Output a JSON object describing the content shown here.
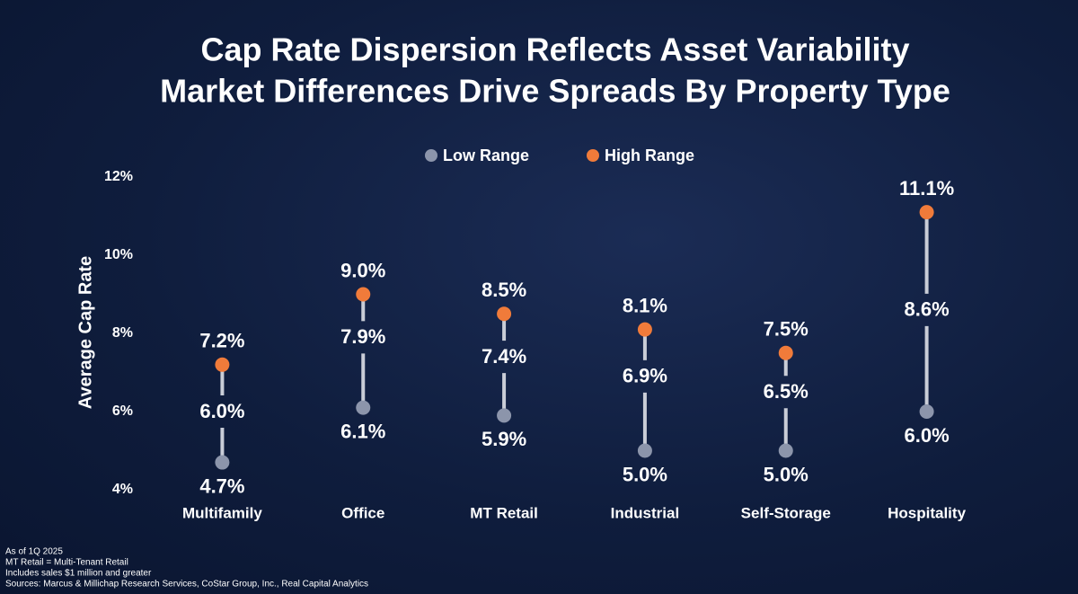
{
  "chart_data": {
    "type": "dumbbell",
    "title": "Cap Rate Dispersion Reflects Asset Variability",
    "subtitle": "Market Differences Drive Spreads By Property Type",
    "y_label": "Average Cap Rate",
    "categories": [
      "Multifamily",
      "Office",
      "MT Retail",
      "Industrial",
      "Self-Storage",
      "Hospitality"
    ],
    "series": [
      {
        "name": "Low Range",
        "color": "#8c95ab",
        "label_color": "#a4abbd",
        "values": [
          4.7,
          6.1,
          5.9,
          5.0,
          5.0,
          6.0
        ],
        "value_labels": [
          "4.7%",
          "6.1%",
          "5.9%",
          "5.0%",
          "5.0%",
          "6.0%"
        ]
      },
      {
        "name": "High Range",
        "color": "#f07b3a",
        "label_color": "#f07b3a",
        "values": [
          7.2,
          9.0,
          8.5,
          8.1,
          7.5,
          11.1
        ],
        "value_labels": [
          "7.2%",
          "9.0%",
          "8.5%",
          "8.1%",
          "7.5%",
          "11.1%"
        ]
      }
    ],
    "midpoints": {
      "values": [
        6.0,
        7.9,
        7.4,
        6.9,
        6.5,
        8.6
      ],
      "value_labels": [
        "6.0%",
        "7.9%",
        "7.4%",
        "6.9%",
        "6.5%",
        "8.6%"
      ]
    },
    "ylim": [
      4,
      12
    ],
    "yticks": [
      {
        "value": 4,
        "label": "4%"
      },
      {
        "value": 6,
        "label": "6%"
      },
      {
        "value": 8,
        "label": "8%"
      },
      {
        "value": 10,
        "label": "10%"
      },
      {
        "value": 12,
        "label": "12%"
      }
    ]
  },
  "notes": [
    "As of 1Q 2025",
    "MT Retail = Multi-Tenant Retail",
    "Includes sales $1 million and greater",
    "Sources: Marcus & Millichap Research Services, CoStar Group, Inc., Real Capital Analytics"
  ]
}
